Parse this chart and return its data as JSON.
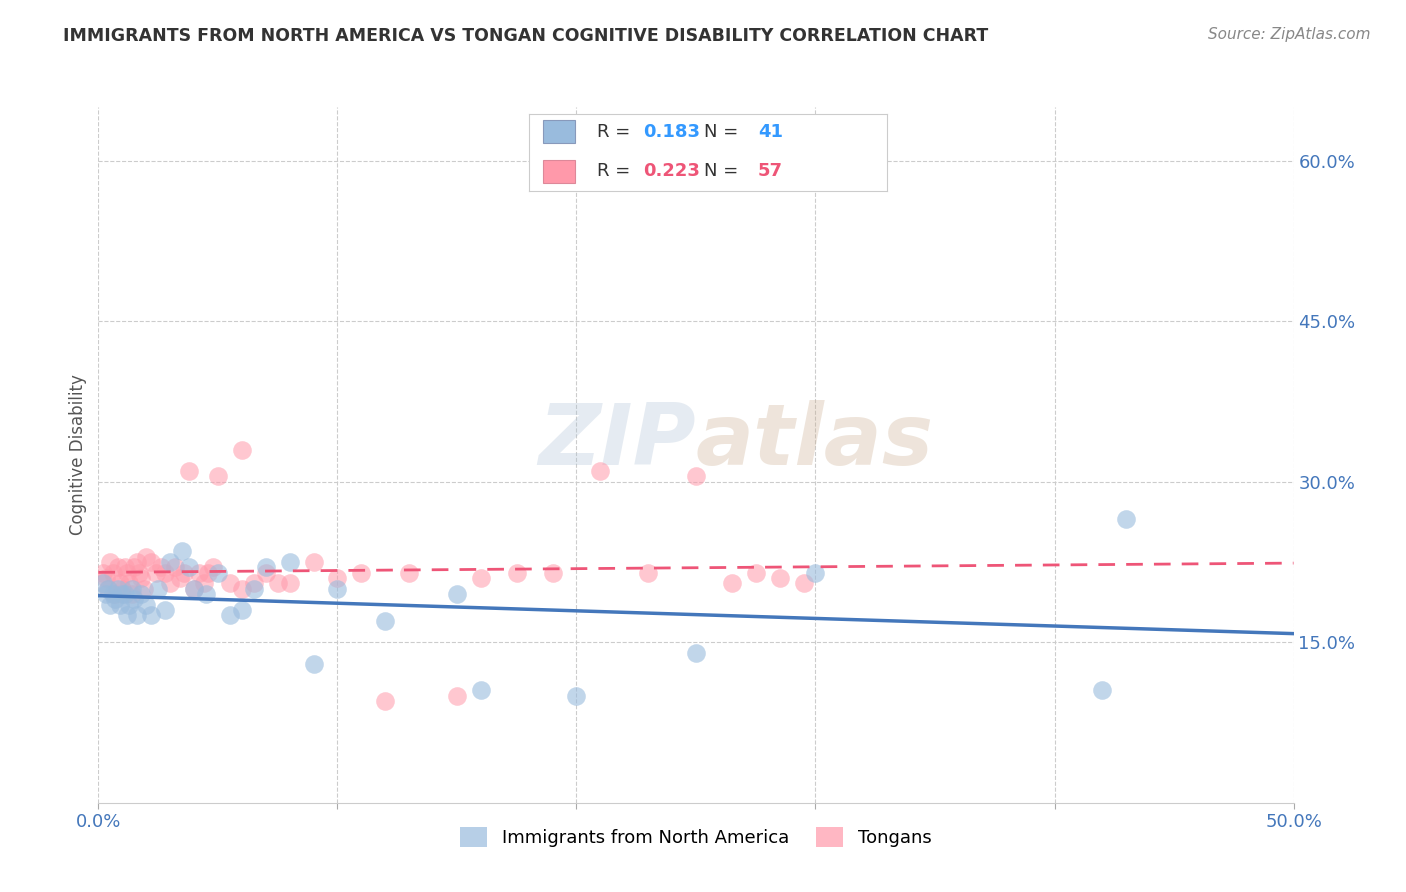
{
  "title": "IMMIGRANTS FROM NORTH AMERICA VS TONGAN COGNITIVE DISABILITY CORRELATION CHART",
  "source": "Source: ZipAtlas.com",
  "ylabel_label": "Cognitive Disability",
  "x_min": 0.0,
  "x_max": 0.5,
  "y_min": 0.0,
  "y_max": 0.65,
  "x_ticks": [
    0.0,
    0.1,
    0.2,
    0.3,
    0.4,
    0.5
  ],
  "x_tick_labels": [
    "0.0%",
    "",
    "",
    "",
    "",
    "50.0%"
  ],
  "y_ticks": [
    0.15,
    0.3,
    0.45,
    0.6
  ],
  "y_tick_labels": [
    "15.0%",
    "30.0%",
    "45.0%",
    "60.0%"
  ],
  "watermark_zip": "ZIP",
  "watermark_atlas": "atlas",
  "legend_r1": "0.183",
  "legend_n1": "41",
  "legend_r2": "0.223",
  "legend_n2": "57",
  "legend_label1": "Immigrants from North America",
  "legend_label2": "Tongans",
  "color_blue": "#99BBDD",
  "color_pink": "#FF99AA",
  "color_blue_line": "#4477BB",
  "color_pink_line": "#EE5577",
  "blue_x": [
    0.002,
    0.003,
    0.004,
    0.005,
    0.006,
    0.007,
    0.008,
    0.009,
    0.01,
    0.011,
    0.012,
    0.013,
    0.014,
    0.015,
    0.016,
    0.018,
    0.02,
    0.022,
    0.025,
    0.028,
    0.03,
    0.035,
    0.038,
    0.04,
    0.045,
    0.05,
    0.055,
    0.06,
    0.065,
    0.07,
    0.08,
    0.09,
    0.1,
    0.12,
    0.15,
    0.16,
    0.2,
    0.25,
    0.3,
    0.42,
    0.43
  ],
  "blue_y": [
    0.205,
    0.195,
    0.2,
    0.185,
    0.195,
    0.19,
    0.2,
    0.185,
    0.195,
    0.195,
    0.175,
    0.185,
    0.2,
    0.19,
    0.175,
    0.195,
    0.185,
    0.175,
    0.2,
    0.18,
    0.225,
    0.235,
    0.22,
    0.2,
    0.195,
    0.215,
    0.175,
    0.18,
    0.2,
    0.22,
    0.225,
    0.13,
    0.2,
    0.17,
    0.195,
    0.105,
    0.1,
    0.14,
    0.215,
    0.105,
    0.265
  ],
  "pink_x": [
    0.002,
    0.003,
    0.004,
    0.005,
    0.006,
    0.007,
    0.008,
    0.009,
    0.01,
    0.011,
    0.012,
    0.013,
    0.014,
    0.015,
    0.016,
    0.017,
    0.018,
    0.019,
    0.02,
    0.022,
    0.024,
    0.026,
    0.028,
    0.03,
    0.032,
    0.034,
    0.036,
    0.038,
    0.04,
    0.042,
    0.044,
    0.046,
    0.048,
    0.05,
    0.055,
    0.06,
    0.065,
    0.07,
    0.075,
    0.08,
    0.09,
    0.1,
    0.11,
    0.12,
    0.13,
    0.15,
    0.16,
    0.175,
    0.19,
    0.21,
    0.23,
    0.25,
    0.265,
    0.275,
    0.285,
    0.295,
    0.06
  ],
  "pink_y": [
    0.215,
    0.21,
    0.2,
    0.225,
    0.215,
    0.195,
    0.22,
    0.205,
    0.2,
    0.22,
    0.215,
    0.205,
    0.195,
    0.22,
    0.225,
    0.215,
    0.21,
    0.2,
    0.23,
    0.225,
    0.215,
    0.22,
    0.215,
    0.205,
    0.22,
    0.21,
    0.215,
    0.31,
    0.2,
    0.215,
    0.205,
    0.215,
    0.22,
    0.305,
    0.205,
    0.2,
    0.205,
    0.215,
    0.205,
    0.205,
    0.225,
    0.21,
    0.215,
    0.095,
    0.215,
    0.1,
    0.21,
    0.215,
    0.215,
    0.31,
    0.215,
    0.305,
    0.205,
    0.215,
    0.21,
    0.205,
    0.33
  ],
  "grid_color": "#CCCCCC",
  "tick_color": "#4477BB",
  "title_color": "#333333",
  "source_color": "#888888",
  "ylabel_color": "#555555"
}
